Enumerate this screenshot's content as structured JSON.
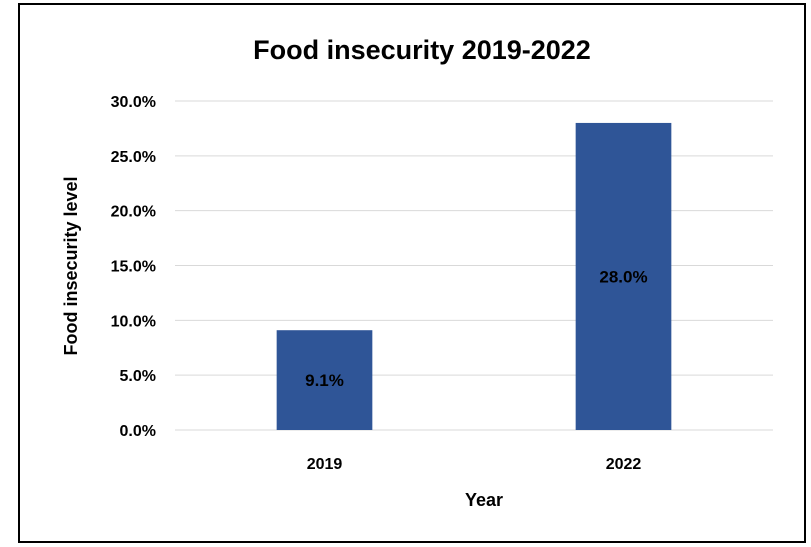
{
  "chart_data": {
    "type": "bar",
    "title": "Food insecurity 2019-2022",
    "xlabel": "Year",
    "ylabel": "Food insecurity level",
    "categories": [
      "2019",
      "2022"
    ],
    "values": [
      9.1,
      28.0
    ],
    "data_labels": [
      "9.1%",
      "28.0%"
    ],
    "yticks": [
      "0.0%",
      "5.0%",
      "10.0%",
      "15.0%",
      "20.0%",
      "25.0%",
      "30.0%"
    ],
    "ylim": [
      0,
      30
    ],
    "grid": true,
    "legend": "none",
    "bar_color": "#2f5597"
  }
}
